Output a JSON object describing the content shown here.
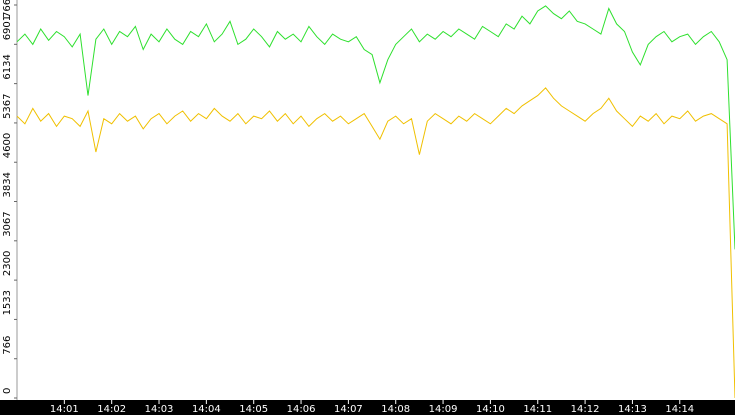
{
  "chart_data": {
    "type": "line",
    "x": [
      0,
      10,
      20,
      30,
      40,
      50,
      60,
      70,
      80,
      90,
      100,
      110,
      120,
      130,
      140,
      150,
      160,
      170,
      180,
      190,
      200,
      210,
      220,
      230,
      240,
      250,
      260,
      270,
      280,
      290,
      300,
      310,
      320,
      330,
      340,
      350,
      360,
      370,
      380,
      390,
      400,
      410,
      420,
      430,
      440,
      450,
      460,
      470,
      480,
      490,
      500,
      510,
      520,
      530,
      540,
      550,
      560,
      570,
      580,
      590,
      600,
      610,
      620,
      630,
      640,
      650,
      660,
      670,
      680,
      690,
      700,
      710,
      720,
      730,
      740,
      750,
      760,
      770,
      780,
      790,
      800,
      810,
      820,
      830,
      840,
      850,
      860,
      870,
      880,
      890,
      900,
      910
    ],
    "series": [
      {
        "color": "#2ee02e",
        "values": [
          6950,
          7100,
          6900,
          7200,
          6980,
          7150,
          7050,
          6850,
          7100,
          5900,
          7000,
          7200,
          6900,
          7150,
          7050,
          7250,
          6800,
          7100,
          6950,
          7200,
          7000,
          6900,
          7150,
          7050,
          7300,
          6950,
          7100,
          7350,
          6900,
          7000,
          7200,
          7050,
          6850,
          7150,
          7000,
          7100,
          6950,
          7250,
          7050,
          6900,
          7100,
          7000,
          6950,
          7050,
          6800,
          6700,
          6150,
          6600,
          6900,
          7050,
          7200,
          6950,
          7100,
          7000,
          7150,
          7050,
          7200,
          7100,
          7000,
          7250,
          7150,
          7050,
          7300,
          7200,
          7450,
          7300,
          7550,
          7650,
          7500,
          7400,
          7550,
          7350,
          7300,
          7200,
          7100,
          7600,
          7300,
          7150,
          6750,
          6500,
          6900,
          7050,
          7150,
          6950,
          7050,
          7100,
          6900,
          7050,
          7150,
          6950,
          6600,
          2900
        ]
      },
      {
        "color": "#f0c000",
        "values": [
          5500,
          5350,
          5650,
          5400,
          5550,
          5300,
          5500,
          5450,
          5300,
          5600,
          4800,
          5450,
          5350,
          5550,
          5400,
          5500,
          5250,
          5450,
          5550,
          5350,
          5500,
          5600,
          5400,
          5550,
          5450,
          5650,
          5500,
          5400,
          5550,
          5350,
          5500,
          5450,
          5600,
          5400,
          5550,
          5350,
          5500,
          5300,
          5450,
          5550,
          5400,
          5500,
          5350,
          5450,
          5550,
          5300,
          5050,
          5400,
          5500,
          5350,
          5450,
          4750,
          5400,
          5550,
          5450,
          5350,
          5500,
          5400,
          5550,
          5450,
          5350,
          5500,
          5650,
          5550,
          5700,
          5800,
          5900,
          6050,
          5850,
          5700,
          5600,
          5500,
          5400,
          5550,
          5650,
          5850,
          5600,
          5450,
          5300,
          5500,
          5400,
          5550,
          5350,
          5500,
          5450,
          5600,
          5400,
          5500,
          5550,
          5450,
          5350,
          0
        ]
      }
    ],
    "xlim": [
      0,
      910
    ],
    "xticks": [
      {
        "value": 60,
        "label": "14:01"
      },
      {
        "value": 120,
        "label": "14:02"
      },
      {
        "value": 180,
        "label": "14:03"
      },
      {
        "value": 240,
        "label": "14:04"
      },
      {
        "value": 300,
        "label": "14:05"
      },
      {
        "value": 360,
        "label": "14:06"
      },
      {
        "value": 420,
        "label": "14:07"
      },
      {
        "value": 480,
        "label": "14:08"
      },
      {
        "value": 540,
        "label": "14:09"
      },
      {
        "value": 600,
        "label": "14:10"
      },
      {
        "value": 660,
        "label": "14:11"
      },
      {
        "value": 720,
        "label": "14:12"
      },
      {
        "value": 780,
        "label": "14:13"
      },
      {
        "value": 840,
        "label": "14:14"
      }
    ],
    "ylim": [
      0,
      7668
    ],
    "yticks": [
      0,
      766,
      1533,
      2300,
      3067,
      3834,
      4600,
      5367,
      6134,
      6901,
      7668
    ]
  }
}
